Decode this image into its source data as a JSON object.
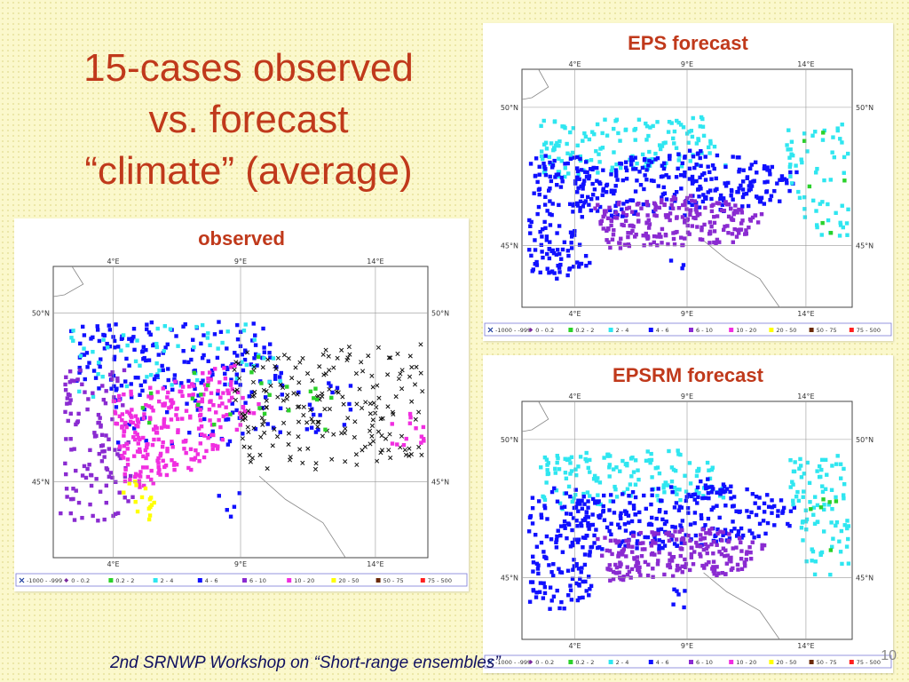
{
  "slide": {
    "title_lines": [
      "15-cases observed",
      "vs. forecast",
      "“climate” (average)"
    ],
    "footer": "2nd SRNWP Workshop on “Short-range ensembles”",
    "page_number": "10"
  },
  "map": {
    "lon_labels": [
      "4°E",
      "9°E",
      "14°E"
    ],
    "lat_labels": [
      "50°N",
      "45°N"
    ],
    "legend_items": [
      {
        "label": "-1000 - -999",
        "color": "#1a3a9c",
        "marker": "x-icon"
      },
      {
        "label": "0 - 0.2",
        "color": "#7b2a9e",
        "marker": "diamond-icon"
      },
      {
        "label": "0.2 - 2",
        "color": "#2bd12b",
        "marker": "square-icon"
      },
      {
        "label": "2 - 4",
        "color": "#2fe6f0",
        "marker": "square-icon"
      },
      {
        "label": "4 - 6",
        "color": "#1010ff",
        "marker": "square-icon"
      },
      {
        "label": "6 - 10",
        "color": "#8a2bd1",
        "marker": "square-icon"
      },
      {
        "label": "10 - 20",
        "color": "#f02ee0",
        "marker": "square-icon"
      },
      {
        "label": "20 - 50",
        "color": "#ffff00",
        "marker": "square-icon"
      },
      {
        "label": "50 - 75",
        "color": "#6b2a0a",
        "marker": "square-icon"
      },
      {
        "label": "75 - 500",
        "color": "#ff2020",
        "marker": "square-icon"
      }
    ]
  },
  "panels": [
    {
      "title": "observed",
      "map_name": "observed-precip-map"
    },
    {
      "title": "EPS forecast",
      "map_name": "eps-forecast-map"
    },
    {
      "title": "EPSRM forecast",
      "map_name": "epsrm-forecast-map"
    }
  ]
}
